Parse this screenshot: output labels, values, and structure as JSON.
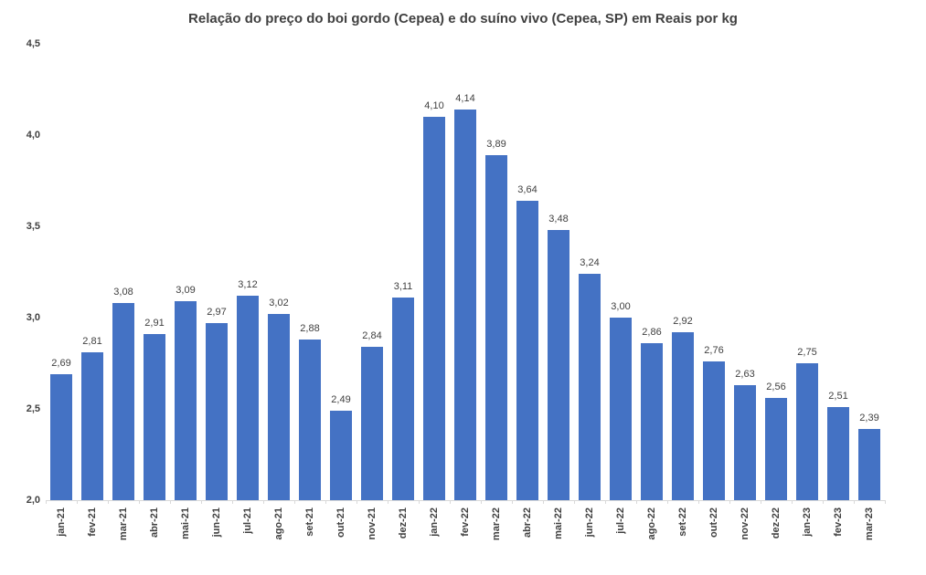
{
  "chart_data": {
    "type": "bar",
    "title": "Relação do preço do boi gordo (Cepea) e do suíno vivo (Cepea, SP) em Reais por kg",
    "categories": [
      "jan-21",
      "fev-21",
      "mar-21",
      "abr-21",
      "mai-21",
      "jun-21",
      "jul-21",
      "ago-21",
      "set-21",
      "out-21",
      "nov-21",
      "dez-21",
      "jan-22",
      "fev-22",
      "mar-22",
      "abr-22",
      "mai-22",
      "jun-22",
      "jul-22",
      "ago-22",
      "set-22",
      "out-22",
      "nov-22",
      "dez-22",
      "jan-23",
      "fev-23",
      "mar-23"
    ],
    "values": [
      2.69,
      2.81,
      3.08,
      2.91,
      3.09,
      2.97,
      3.12,
      3.02,
      2.88,
      2.49,
      2.84,
      3.11,
      4.1,
      4.14,
      3.89,
      3.64,
      3.48,
      3.24,
      3.0,
      2.86,
      2.92,
      2.76,
      2.63,
      2.56,
      2.75,
      2.51,
      2.39
    ],
    "value_labels": [
      "2,69",
      "2,81",
      "3,08",
      "2,91",
      "3,09",
      "2,97",
      "3,12",
      "3,02",
      "2,88",
      "2,49",
      "2,84",
      "3,11",
      "4,10",
      "4,14",
      "3,89",
      "3,64",
      "3,48",
      "3,24",
      "3,00",
      "2,86",
      "2,92",
      "2,76",
      "2,63",
      "2,56",
      "2,75",
      "2,51",
      "2,39"
    ],
    "xlabel": "",
    "ylabel": "",
    "ylim": [
      2.0,
      4.5
    ],
    "ytick_values": [
      4.5,
      4.0,
      3.5,
      3.0,
      2.5,
      2.0
    ],
    "ytick_labels": [
      "4,5",
      "4,0",
      "3,5",
      "3,0",
      "2,5",
      "2,0"
    ],
    "grid": false,
    "legend_position": "none",
    "bar_color": "#4472C4",
    "axis_color": "#D9D9D9",
    "text_color": "#404040"
  }
}
